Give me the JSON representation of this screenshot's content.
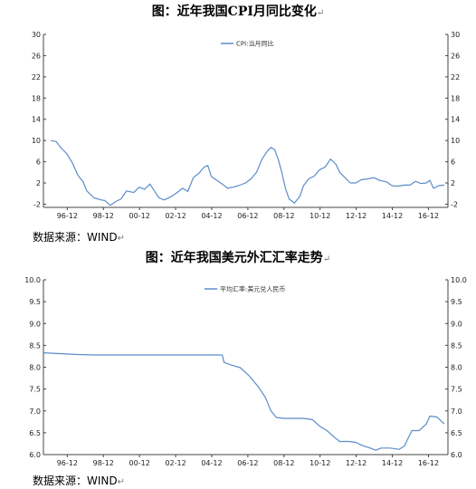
{
  "chart_data": [
    {
      "type": "line",
      "title": "图：近年我国CPI月同比变化",
      "xlabel": "",
      "ylabel": "",
      "series": [
        {
          "name": "CPI:当月同比",
          "color": "#5b8cc9",
          "points": [
            [
              1996.0,
              10.0
            ],
            [
              1996.3,
              9.8
            ],
            [
              1996.6,
              8.5
            ],
            [
              1996.9,
              7.5
            ],
            [
              1997.2,
              5.8
            ],
            [
              1997.5,
              3.5
            ],
            [
              1997.8,
              2.2
            ],
            [
              1998.0,
              0.5
            ],
            [
              1998.4,
              -0.8
            ],
            [
              1998.8,
              -1.2
            ],
            [
              1999.0,
              -1.3
            ],
            [
              1999.3,
              -2.2
            ],
            [
              1999.6,
              -1.5
            ],
            [
              1999.9,
              -1.0
            ],
            [
              2000.2,
              0.5
            ],
            [
              2000.6,
              0.2
            ],
            [
              2000.9,
              1.2
            ],
            [
              2001.2,
              0.8
            ],
            [
              2001.5,
              1.8
            ],
            [
              2001.8,
              0.2
            ],
            [
              2002.0,
              -0.8
            ],
            [
              2002.3,
              -1.2
            ],
            [
              2002.7,
              -0.5
            ],
            [
              2003.0,
              0.2
            ],
            [
              2003.3,
              1.0
            ],
            [
              2003.6,
              0.4
            ],
            [
              2003.9,
              3.0
            ],
            [
              2004.2,
              3.8
            ],
            [
              2004.5,
              5.0
            ],
            [
              2004.7,
              5.3
            ],
            [
              2004.9,
              3.2
            ],
            [
              2005.2,
              2.5
            ],
            [
              2005.5,
              1.8
            ],
            [
              2005.8,
              1.0
            ],
            [
              2006.1,
              1.2
            ],
            [
              2006.4,
              1.5
            ],
            [
              2006.8,
              2.0
            ],
            [
              2007.1,
              2.8
            ],
            [
              2007.4,
              4.0
            ],
            [
              2007.7,
              6.5
            ],
            [
              2008.0,
              8.0
            ],
            [
              2008.2,
              8.7
            ],
            [
              2008.4,
              8.3
            ],
            [
              2008.6,
              6.5
            ],
            [
              2008.8,
              4.0
            ],
            [
              2009.0,
              1.0
            ],
            [
              2009.2,
              -1.0
            ],
            [
              2009.5,
              -1.8
            ],
            [
              2009.8,
              -0.5
            ],
            [
              2010.0,
              1.5
            ],
            [
              2010.3,
              2.8
            ],
            [
              2010.6,
              3.3
            ],
            [
              2010.9,
              4.5
            ],
            [
              2011.2,
              5.0
            ],
            [
              2011.5,
              6.5
            ],
            [
              2011.8,
              5.5
            ],
            [
              2012.0,
              4.0
            ],
            [
              2012.3,
              3.0
            ],
            [
              2012.6,
              2.0
            ],
            [
              2012.9,
              2.0
            ],
            [
              2013.2,
              2.6
            ],
            [
              2013.6,
              2.8
            ],
            [
              2013.9,
              3.0
            ],
            [
              2014.2,
              2.5
            ],
            [
              2014.6,
              2.2
            ],
            [
              2014.9,
              1.5
            ],
            [
              2015.2,
              1.4
            ],
            [
              2015.6,
              1.6
            ],
            [
              2015.9,
              1.6
            ],
            [
              2016.2,
              2.3
            ],
            [
              2016.5,
              1.9
            ],
            [
              2016.8,
              2.0
            ],
            [
              2017.0,
              2.5
            ],
            [
              2017.2,
              1.0
            ],
            [
              2017.5,
              1.5
            ],
            [
              2017.8,
              1.6
            ]
          ]
        }
      ],
      "x_ticks": [
        "96-12",
        "98-12",
        "00-12",
        "02-12",
        "04-12",
        "06-12",
        "08-12",
        "10-12",
        "12-12",
        "14-12",
        "16-12"
      ],
      "x_tick_values": [
        1996.92,
        1998.92,
        2000.92,
        2002.92,
        2004.92,
        2006.92,
        2008.92,
        2010.92,
        2012.92,
        2014.92,
        2016.92
      ],
      "xlim": [
        1995.6,
        2018.0
      ],
      "y_ticks": [
        -2,
        2,
        6,
        10,
        14,
        18,
        22,
        26,
        30
      ],
      "ylim": [
        -2.6,
        30
      ],
      "legend": "top-center",
      "grid": false
    },
    {
      "type": "line",
      "title": "图：近年我国美元外汇汇率走势",
      "xlabel": "",
      "ylabel": "",
      "series": [
        {
          "name": "平均汇率:美元兑人民币",
          "color": "#5b8cc9",
          "points": [
            [
              1995.6,
              8.33
            ],
            [
              1996.5,
              8.31
            ],
            [
              1997.5,
              8.29
            ],
            [
              1998.5,
              8.28
            ],
            [
              2000.0,
              8.28
            ],
            [
              2002.0,
              8.28
            ],
            [
              2004.0,
              8.28
            ],
            [
              2005.5,
              8.28
            ],
            [
              2005.6,
              8.11
            ],
            [
              2006.0,
              8.05
            ],
            [
              2006.5,
              7.99
            ],
            [
              2007.0,
              7.8
            ],
            [
              2007.5,
              7.55
            ],
            [
              2007.9,
              7.3
            ],
            [
              2008.2,
              7.0
            ],
            [
              2008.5,
              6.85
            ],
            [
              2008.9,
              6.83
            ],
            [
              2009.5,
              6.83
            ],
            [
              2010.0,
              6.83
            ],
            [
              2010.5,
              6.8
            ],
            [
              2010.9,
              6.65
            ],
            [
              2011.3,
              6.55
            ],
            [
              2011.7,
              6.4
            ],
            [
              2012.0,
              6.3
            ],
            [
              2012.5,
              6.3
            ],
            [
              2012.9,
              6.28
            ],
            [
              2013.3,
              6.2
            ],
            [
              2013.7,
              6.15
            ],
            [
              2014.0,
              6.1
            ],
            [
              2014.3,
              6.15
            ],
            [
              2014.8,
              6.15
            ],
            [
              2015.3,
              6.12
            ],
            [
              2015.6,
              6.2
            ],
            [
              2015.8,
              6.38
            ],
            [
              2016.0,
              6.55
            ],
            [
              2016.4,
              6.55
            ],
            [
              2016.8,
              6.7
            ],
            [
              2017.0,
              6.88
            ],
            [
              2017.4,
              6.86
            ],
            [
              2017.8,
              6.7
            ]
          ]
        }
      ],
      "x_ticks": [
        "96-12",
        "98-12",
        "00-12",
        "02-12",
        "04-12",
        "06-12",
        "08-12",
        "10-12",
        "12-12",
        "14-12",
        "16-12"
      ],
      "x_tick_values": [
        1996.92,
        1998.92,
        2000.92,
        2002.92,
        2004.92,
        2006.92,
        2008.92,
        2010.92,
        2012.92,
        2014.92,
        2016.92
      ],
      "xlim": [
        1995.6,
        2018.0
      ],
      "y_ticks": [
        6.0,
        6.5,
        7.0,
        7.5,
        8.0,
        8.5,
        9.0,
        9.5,
        10.0
      ],
      "ylim": [
        6.0,
        10.0
      ],
      "legend": "top-center",
      "grid": false
    }
  ],
  "source1": "数据来源：WIND",
  "source2": "数据来源：WIND",
  "return_mark": "↵"
}
